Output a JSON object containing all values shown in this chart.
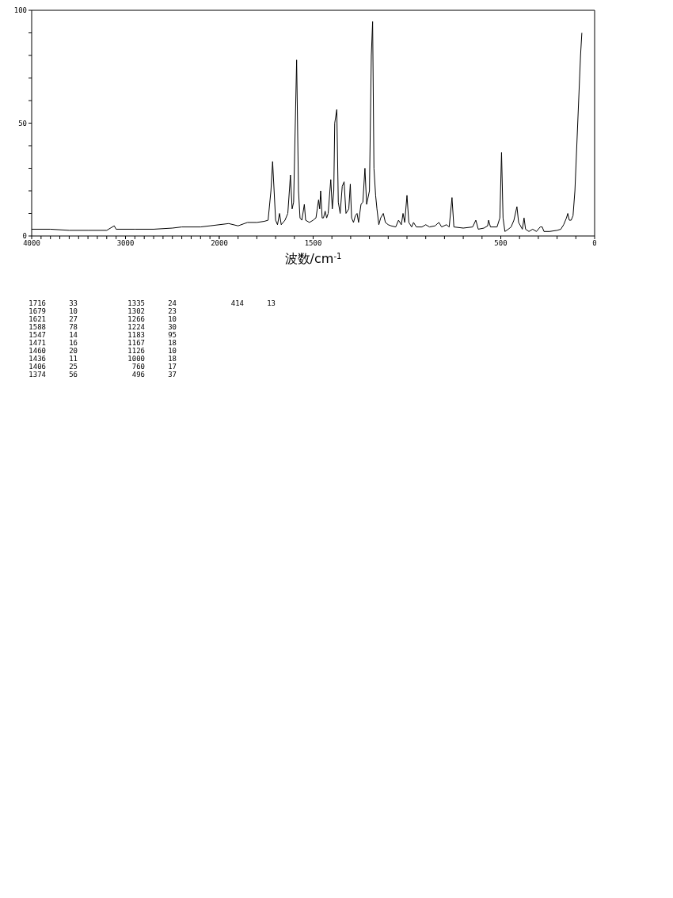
{
  "chart_data": [
    {
      "type": "line",
      "color": "#000000",
      "marker": "none",
      "line_style": "solid",
      "xlim": [
        4000,
        2000
      ],
      "ylim": [
        0,
        100
      ],
      "xticks": [
        4000,
        {
          "value": 3900,
          "label": null
        },
        {
          "value": 3800,
          "label": null
        },
        {
          "value": 3700,
          "label": null
        },
        {
          "value": 3600,
          "label": null
        },
        {
          "value": 3500,
          "label": null
        },
        {
          "value": 3400,
          "label": null
        },
        {
          "value": 3300,
          "label": null
        },
        {
          "value": 3200,
          "label": null
        },
        {
          "value": 3100,
          "label": null
        },
        3000,
        {
          "value": 2900,
          "label": null
        },
        {
          "value": 2800,
          "label": null
        },
        {
          "value": 2700,
          "label": null
        },
        {
          "value": 2600,
          "label": null
        },
        {
          "value": 2500,
          "label": null
        },
        {
          "value": 2400,
          "label": null
        },
        {
          "value": 2300,
          "label": null
        },
        {
          "value": 2200,
          "label": null
        },
        {
          "value": 2100,
          "label": null
        },
        {
          "value": 2000,
          "label": null
        }
      ],
      "yticks": [
        0,
        {
          "value": 10,
          "label": null
        },
        {
          "value": 20,
          "label": null
        },
        {
          "value": 30,
          "label": null
        },
        {
          "value": 40,
          "label": null
        },
        50,
        {
          "value": 60,
          "label": null
        },
        {
          "value": 70,
          "label": null
        },
        {
          "value": 80,
          "label": null
        },
        {
          "value": 90,
          "label": null
        },
        100
      ],
      "x": [
        4000,
        3800,
        3600,
        3400,
        3200,
        3120,
        3100,
        2900,
        2700,
        2500,
        2400,
        2200,
        2100,
        2000
      ],
      "values": [
        3,
        3,
        2.5,
        2.5,
        2.5,
        4.5,
        3,
        3,
        3,
        3.5,
        4,
        4,
        4.5,
        5
      ],
      "annotations": [
        "1716 33",
        "1679 10",
        "1621 27",
        "1588 78",
        "1547 14",
        "1471 16",
        "1460 20",
        "1436 11",
        "1406 25",
        "1374 56",
        "1335 24",
        "1302 23",
        "1266 10",
        "1224 30",
        "1183 95",
        "1167 18",
        "1126 10",
        "1000 18",
        "760 17",
        "496 37",
        "414 13"
      ]
    },
    {
      "type": "line",
      "xlabel": "波数/cm$^{-1}$",
      "color": "#000000",
      "marker": "none",
      "line_style": "solid",
      "tick_labels": "x",
      "xlim": [
        2000,
        0
      ],
      "ylim": [
        0,
        100
      ],
      "xticks": [
        2000,
        {
          "value": 1900,
          "label": null
        },
        {
          "value": 1800,
          "label": null
        },
        {
          "value": 1700,
          "label": null
        },
        {
          "value": 1600,
          "label": null
        },
        1500,
        {
          "value": 1400,
          "label": null
        },
        {
          "value": 1300,
          "label": null
        },
        {
          "value": 1200,
          "label": null
        },
        {
          "value": 1100,
          "label": null
        },
        {
          "value": 1000,
          "label": null
        },
        {
          "value": 900,
          "label": null
        },
        {
          "value": 800,
          "label": null
        },
        {
          "value": 700,
          "label": null
        },
        {
          "value": 600,
          "label": null
        },
        500,
        {
          "value": 400,
          "label": null
        },
        {
          "value": 300,
          "label": null
        },
        {
          "value": 200,
          "label": null
        },
        {
          "value": 100,
          "label": null
        },
        0
      ],
      "x": [
        2000,
        1950,
        1900,
        1850,
        1800,
        1760,
        1740,
        1725,
        1716,
        1708,
        1700,
        1690,
        1679,
        1670,
        1650,
        1635,
        1621,
        1612,
        1604,
        1588,
        1578,
        1570,
        1560,
        1547,
        1540,
        1520,
        1500,
        1485,
        1478,
        1471,
        1465,
        1460,
        1452,
        1445,
        1436,
        1428,
        1420,
        1406,
        1398,
        1390,
        1385,
        1374,
        1366,
        1356,
        1345,
        1335,
        1325,
        1310,
        1302,
        1295,
        1285,
        1275,
        1266,
        1258,
        1245,
        1235,
        1224,
        1215,
        1200,
        1190,
        1183,
        1176,
        1167,
        1160,
        1150,
        1140,
        1126,
        1115,
        1100,
        1085,
        1060,
        1045,
        1030,
        1021,
        1012,
        1000,
        990,
        975,
        965,
        950,
        920,
        900,
        880,
        850,
        830,
        815,
        790,
        775,
        760,
        750,
        700,
        650,
        633,
        620,
        590,
        570,
        565,
        555,
        520,
        505,
        496,
        488,
        478,
        460,
        445,
        430,
        414,
        405,
        385,
        376,
        368,
        350,
        330,
        310,
        290,
        279,
        270,
        240,
        200,
        180,
        165,
        150,
        143,
        135,
        125,
        115,
        105,
        95,
        85,
        75,
        68
      ],
      "values": [
        5,
        5.5,
        4.5,
        6,
        6,
        6.5,
        7,
        20,
        33,
        20,
        7,
        5,
        10,
        5,
        7,
        10,
        27,
        12,
        15,
        78,
        20,
        8,
        7,
        14,
        7,
        6,
        7,
        8,
        12,
        16,
        12,
        20,
        8,
        8,
        11,
        8,
        10,
        25,
        12,
        20,
        50,
        56,
        15,
        10,
        22,
        24,
        10,
        12,
        23,
        8,
        6,
        9,
        10,
        6,
        14,
        15,
        30,
        14,
        20,
        80,
        95,
        30,
        18,
        12,
        5,
        8,
        10,
        6,
        5,
        4.5,
        4,
        7,
        5,
        10,
        6,
        18,
        6,
        4,
        6,
        4,
        4,
        5,
        4,
        4.5,
        6,
        4,
        5,
        4,
        17,
        4,
        3.5,
        4,
        7,
        3,
        3.5,
        4.5,
        7,
        4,
        4,
        8,
        37,
        8,
        2,
        3,
        4,
        7,
        13,
        6,
        3,
        8,
        3,
        2,
        3,
        2,
        4,
        4,
        2,
        2,
        2.5,
        3,
        5,
        8,
        10,
        7,
        7,
        9,
        20,
        40,
        60,
        80,
        90
      ]
    }
  ]
}
